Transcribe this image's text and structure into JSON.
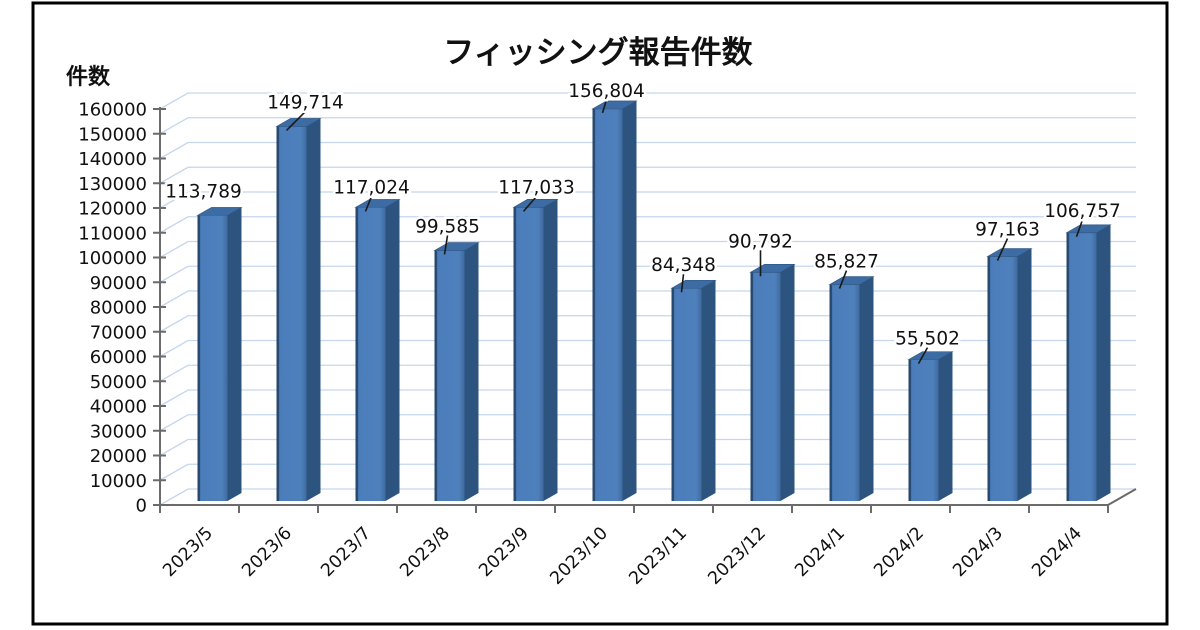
{
  "chart_data": {
    "type": "bar",
    "style": "3d-column",
    "title": "フィッシング報告件数",
    "ylabel": "件数",
    "xlabel": "",
    "categories": [
      "2023/5",
      "2023/6",
      "2023/7",
      "2023/8",
      "2023/9",
      "2023/10",
      "2023/11",
      "2023/12",
      "2024/1",
      "2024/2",
      "2024/3",
      "2024/4"
    ],
    "values": [
      113789,
      149714,
      117024,
      99585,
      117033,
      156804,
      84348,
      90792,
      85827,
      55502,
      97163,
      106757
    ],
    "data_labels": [
      "113,789",
      "149,714",
      "117,024",
      "99,585",
      "117,033",
      "156,804",
      "84,348",
      "90,792",
      "85,827",
      "55,502",
      "97,163",
      "106,757"
    ],
    "ylim": [
      0,
      160000
    ],
    "ytick_step": 10000,
    "grid": true,
    "legend": "none",
    "colors": {
      "bar_front": "#4b7dbb",
      "bar_front_edge": "#26486e",
      "bar_top": "#3d6ba3",
      "bar_side": "#2d547f",
      "gridline": "#c5d6ee",
      "axis": "#6b6b6b",
      "text": "#111111",
      "leader_line": "#1a1a1a",
      "border": "#000000",
      "background": "#ffffff"
    }
  }
}
